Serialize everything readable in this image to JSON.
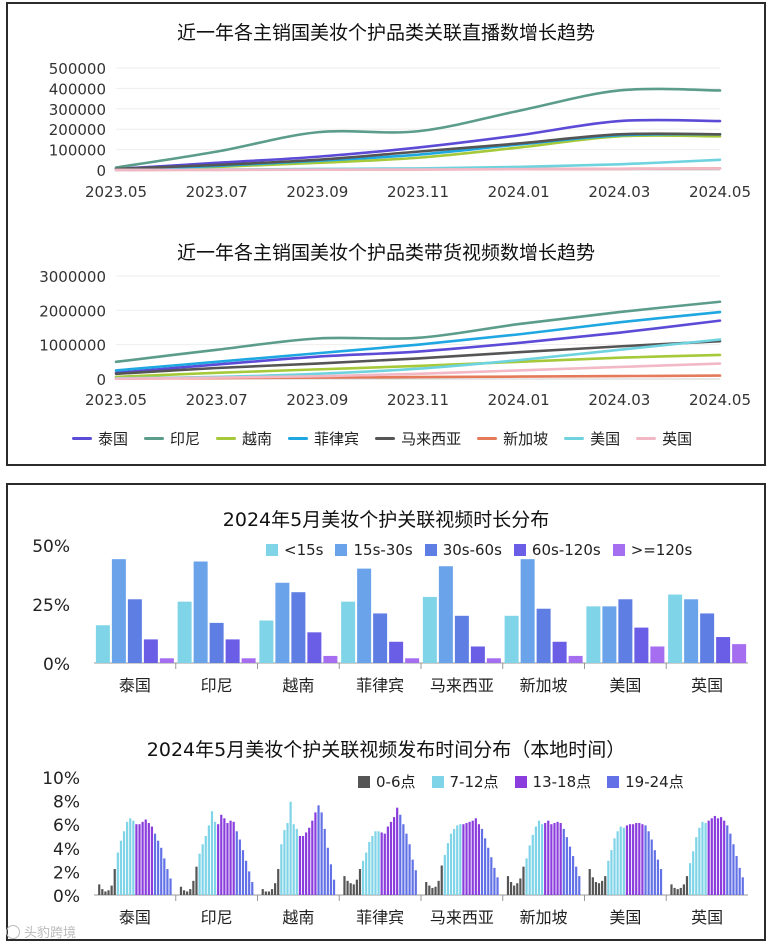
{
  "chart_data": [
    {
      "type": "line",
      "title": "近一年各主销国美妆个护品类关联直播数增长趋势",
      "x": [
        "2023.05",
        "2023.07",
        "2023.09",
        "2023.11",
        "2024.01",
        "2024.03",
        "2024.05"
      ],
      "xlabel": "",
      "ylabel": "",
      "ylim": [
        0,
        500000
      ],
      "y_ticks": [
        "500000",
        "400000",
        "300000",
        "200000",
        "100000",
        "0"
      ],
      "grid": true,
      "series": [
        {
          "name": "泰国",
          "color": "#5b4bd6",
          "values": [
            5000,
            35000,
            65000,
            110000,
            170000,
            240000,
            240000
          ]
        },
        {
          "name": "印尼",
          "color": "#5b9c8a",
          "values": [
            12000,
            90000,
            185000,
            190000,
            290000,
            390000,
            390000
          ]
        },
        {
          "name": "越南",
          "color": "#a6c93a",
          "values": [
            3000,
            15000,
            35000,
            60000,
            110000,
            165000,
            165000
          ]
        },
        {
          "name": "菲律宾",
          "color": "#1ea7e1",
          "values": [
            4000,
            20000,
            45000,
            75000,
            125000,
            170000,
            175000
          ]
        },
        {
          "name": "马来西亚",
          "color": "#555555",
          "values": [
            5000,
            25000,
            50000,
            90000,
            130000,
            175000,
            175000
          ]
        },
        {
          "name": "新加坡",
          "color": "#e57a5a",
          "values": [
            500,
            1000,
            2000,
            3000,
            4000,
            6000,
            8000
          ]
        },
        {
          "name": "美国",
          "color": "#6fd3df",
          "values": [
            500,
            2000,
            5000,
            8000,
            15000,
            28000,
            50000
          ]
        },
        {
          "name": "英国",
          "color": "#f2b8c6",
          "values": [
            300,
            800,
            1500,
            2500,
            4000,
            6000,
            8000
          ]
        }
      ]
    },
    {
      "type": "line",
      "title": "近一年各主销国美妆个护品类带货视频数增长趋势",
      "x": [
        "2023.05",
        "2023.07",
        "2023.09",
        "2023.11",
        "2024.01",
        "2024.03",
        "2024.05"
      ],
      "xlabel": "",
      "ylabel": "",
      "ylim": [
        0,
        3000000
      ],
      "y_ticks": [
        "3000000",
        "2000000",
        "1000000",
        "0"
      ],
      "grid": true,
      "legend_position": "bottom",
      "series": [
        {
          "name": "泰国",
          "color": "#5b4bd6",
          "values": [
            180000,
            420000,
            650000,
            800000,
            1050000,
            1350000,
            1700000
          ]
        },
        {
          "name": "印尼",
          "color": "#5b9c8a",
          "values": [
            500000,
            850000,
            1180000,
            1200000,
            1600000,
            1950000,
            2250000
          ]
        },
        {
          "name": "越南",
          "color": "#a6c93a",
          "values": [
            60000,
            180000,
            280000,
            380000,
            500000,
            620000,
            700000
          ]
        },
        {
          "name": "菲律宾",
          "color": "#1ea7e1",
          "values": [
            250000,
            500000,
            750000,
            1000000,
            1300000,
            1650000,
            1950000
          ]
        },
        {
          "name": "马来西亚",
          "color": "#555555",
          "values": [
            150000,
            320000,
            450000,
            600000,
            780000,
            950000,
            1100000
          ]
        },
        {
          "name": "新加坡",
          "color": "#e57a5a",
          "values": [
            10000,
            25000,
            40000,
            55000,
            70000,
            85000,
            100000
          ]
        },
        {
          "name": "美国",
          "color": "#6fd3df",
          "values": [
            20000,
            60000,
            150000,
            300000,
            550000,
            850000,
            1150000
          ]
        },
        {
          "name": "英国",
          "color": "#f2b8c6",
          "values": [
            10000,
            40000,
            80000,
            150000,
            250000,
            350000,
            450000
          ]
        }
      ]
    },
    {
      "type": "bar",
      "title": "2024年5月美妆个护关联视频时长分布",
      "categories": [
        "泰国",
        "印尼",
        "越南",
        "菲律宾",
        "马来西亚",
        "新加坡",
        "美国",
        "英国"
      ],
      "xlabel": "",
      "ylabel": "",
      "ylim": [
        0,
        50
      ],
      "y_ticks": [
        "50%",
        "25%",
        "0%"
      ],
      "legend_position": "top-right",
      "series": [
        {
          "name": "<15s",
          "color": "#7fd4e8",
          "values": [
            16,
            26,
            18,
            26,
            28,
            20,
            24,
            29
          ]
        },
        {
          "name": "15s-30s",
          "color": "#6aa3ea",
          "values": [
            44,
            43,
            34,
            40,
            41,
            44,
            24,
            27
          ]
        },
        {
          "name": "30s-60s",
          "color": "#5f7ee3",
          "values": [
            27,
            17,
            30,
            21,
            20,
            23,
            27,
            21
          ]
        },
        {
          "name": "60s-120s",
          "color": "#6a5ee6",
          "values": [
            10,
            10,
            13,
            9,
            7,
            9,
            15,
            11
          ]
        },
        {
          "name": ">=120s",
          "color": "#a56df0",
          "values": [
            2,
            2,
            3,
            2,
            2,
            3,
            7,
            8
          ]
        }
      ]
    },
    {
      "type": "bar",
      "title": "2024年5月美妆个护关联视频发布时间分布（本地时间）",
      "categories": [
        "泰国",
        "印尼",
        "越南",
        "菲律宾",
        "马来西亚",
        "新加坡",
        "美国",
        "英国"
      ],
      "xlabel": "",
      "ylabel": "",
      "ylim": [
        0,
        10
      ],
      "y_ticks": [
        "10%",
        "8%",
        "6%",
        "4%",
        "2%",
        "0%"
      ],
      "legend_position": "top-right",
      "groups": [
        {
          "name": "0-6点",
          "color": "#555555"
        },
        {
          "name": "7-12点",
          "color": "#7fd4e8"
        },
        {
          "name": "13-18点",
          "color": "#8a3ddc"
        },
        {
          "name": "19-24点",
          "color": "#6272e6"
        }
      ],
      "hourly": {
        "泰国": [
          0.9,
          0.5,
          0.3,
          0.4,
          0.8,
          2.2,
          3.6,
          4.6,
          5.4,
          6.2,
          6.5,
          6.3,
          6.0,
          6.0,
          6.2,
          6.4,
          6.1,
          5.8,
          5.2,
          4.6,
          4.0,
          3.1,
          2.2,
          1.4
        ],
        "印尼": [
          0.7,
          0.4,
          0.3,
          0.5,
          1.2,
          2.4,
          3.5,
          4.3,
          5.0,
          5.9,
          7.1,
          6.2,
          6.0,
          6.8,
          6.5,
          6.1,
          6.3,
          6.2,
          5.4,
          4.7,
          3.8,
          2.9,
          2.0,
          1.1
        ],
        "越南": [
          0.5,
          0.3,
          0.3,
          0.5,
          1.0,
          2.2,
          4.3,
          5.5,
          6.1,
          7.9,
          6.0,
          5.6,
          5.0,
          5.0,
          5.3,
          5.7,
          6.3,
          7.0,
          7.6,
          7.0,
          5.6,
          4.0,
          2.6,
          1.3
        ],
        "菲律宾": [
          1.6,
          1.2,
          1.0,
          0.9,
          1.3,
          2.2,
          2.9,
          3.6,
          4.5,
          5.0,
          5.4,
          5.4,
          5.3,
          5.2,
          5.8,
          6.2,
          6.6,
          7.4,
          6.8,
          6.0,
          5.2,
          4.3,
          3.0,
          2.1
        ],
        "马来西亚": [
          1.1,
          0.8,
          0.6,
          0.7,
          1.2,
          2.5,
          3.4,
          4.4,
          5.2,
          5.6,
          5.9,
          6.0,
          6.0,
          6.1,
          6.2,
          6.3,
          6.5,
          6.0,
          5.6,
          4.8,
          4.0,
          3.2,
          2.3,
          1.5
        ],
        "新加坡": [
          1.6,
          1.1,
          0.8,
          1.0,
          1.4,
          2.4,
          3.1,
          4.2,
          5.1,
          5.8,
          6.3,
          6.0,
          6.1,
          6.3,
          6.0,
          6.1,
          6.2,
          6.1,
          5.6,
          4.9,
          4.1,
          3.3,
          2.4,
          1.6
        ],
        "美国": [
          2.2,
          1.5,
          1.1,
          1.0,
          1.2,
          1.6,
          2.9,
          3.8,
          4.8,
          5.4,
          5.8,
          5.7,
          5.9,
          6.0,
          6.0,
          6.1,
          6.1,
          6.0,
          5.9,
          5.4,
          4.7,
          3.8,
          3.0,
          2.2
        ],
        "英国": [
          0.9,
          0.6,
          0.5,
          0.6,
          0.9,
          1.6,
          2.7,
          3.7,
          4.9,
          5.7,
          6.2,
          6.1,
          6.3,
          6.5,
          6.7,
          6.5,
          6.6,
          6.3,
          5.9,
          5.2,
          4.3,
          3.3,
          2.3,
          1.5
        ]
      }
    }
  ],
  "watermark": "头豹跨境"
}
